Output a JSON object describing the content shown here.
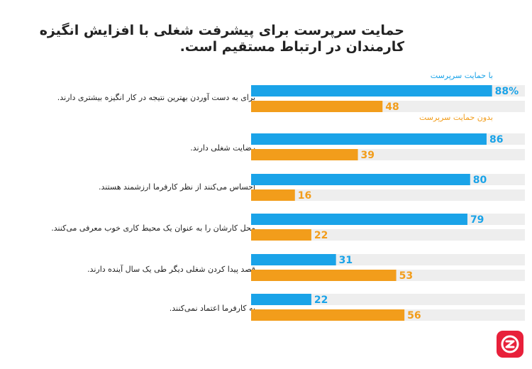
{
  "chart_data": {
    "type": "bar",
    "orientation": "horizontal",
    "title": "حمایت سرپرست برای پیشرفت شغلی با افزایش انگیزه کارمندان در ارتباط مستقیم است.",
    "categories": [
      "برای به دست آوردن بهترین نتیجه در کار انگیزه بیشتری دارند.",
      "رضایت شغلی دارند.",
      "احساس می‌کنند از نظر کارفرما ارزشمند هستند.",
      "محل کارشان را به عنوان یک محیط کاری خوب معرفی می‌کنند.",
      "قصد پیدا کردن شغلی دیگر طی یک سال آینده دارند.",
      "به کارفرما اعتماد نمی‌کنند."
    ],
    "series": [
      {
        "name": "با حمایت سرپرست",
        "values": [
          88,
          86,
          80,
          79,
          31,
          22
        ],
        "color": "#1aa3e8"
      },
      {
        "name": "بدون حمایت سرپرست",
        "values": [
          48,
          39,
          16,
          22,
          53,
          56
        ],
        "color": "#f29d1b"
      }
    ],
    "data_labels": [
      [
        "88%",
        "86",
        "80",
        "79",
        "31",
        "22"
      ],
      [
        "48",
        "39",
        "16",
        "22",
        "53",
        "56"
      ]
    ],
    "xlim": [
      0,
      100
    ],
    "track_color": "#eeeeee",
    "legend": "inline-right",
    "grid": false
  },
  "logo": {
    "icon": "brand-logo-icon",
    "color": "#e8203a"
  }
}
